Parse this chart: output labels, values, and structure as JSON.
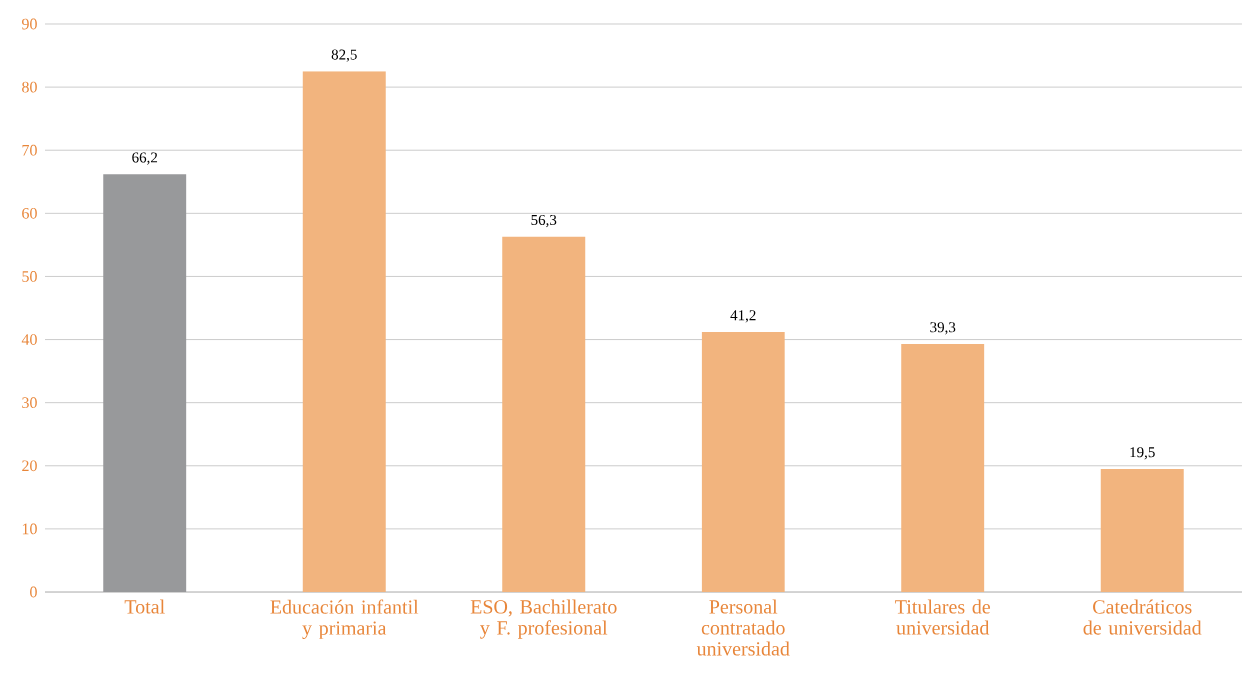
{
  "chart_data": {
    "type": "bar",
    "categories": [
      "Total",
      "Educación infantil y primaria",
      "ESO, Bachillerato y F. profesional",
      "Personal contratado universidad",
      "Titulares de universidad",
      "Catedráticos de universidad"
    ],
    "values": [
      66.2,
      82.5,
      56.3,
      41.2,
      39.3,
      19.5
    ],
    "colors": [
      "#98999b",
      "#f2b47e",
      "#f2b47e",
      "#f2b47e",
      "#f2b47e",
      "#f2b47e"
    ],
    "value_labels": [
      "66,2",
      "82,5",
      "56,3",
      "41,2",
      "39,3",
      "19,5"
    ],
    "ylim": [
      0,
      90
    ],
    "yticks": [
      0,
      10,
      20,
      30,
      40,
      50,
      60,
      70,
      80,
      90
    ],
    "grid": "y"
  }
}
